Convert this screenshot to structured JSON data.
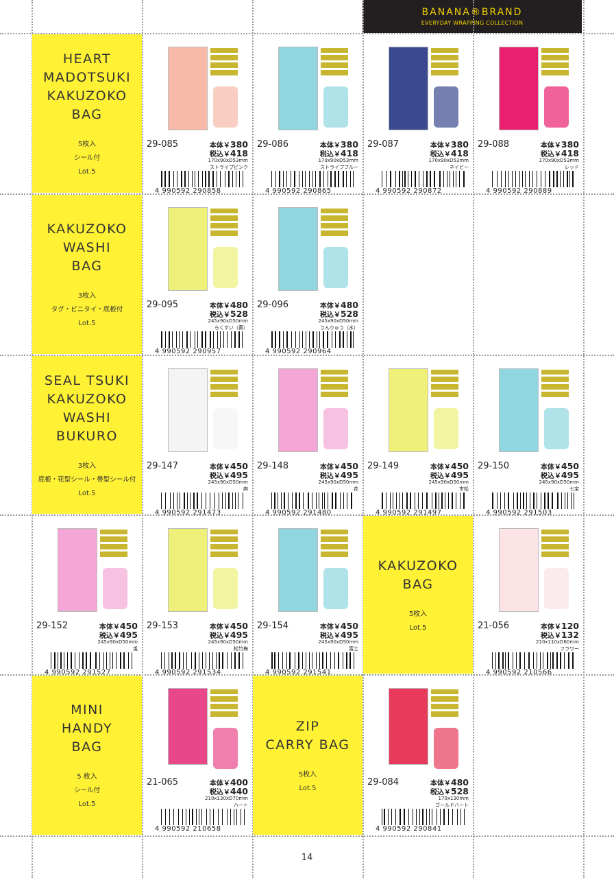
{
  "header": {
    "brand": "BANANA®BRAND",
    "subtitle": "EVERYDAY WRAPPING COLLECTION"
  },
  "labels": {
    "price": "本体￥",
    "tax_price": "税込￥"
  },
  "categories": [
    {
      "title": [
        "HEART",
        "MADOTSUKI",
        "KAKUZOKO",
        "BAG"
      ],
      "quantity": "5枚入",
      "note": "シール付",
      "lot": "Lot.5"
    },
    {
      "title": [
        "KAKUZOKO",
        "WASHI",
        "BAG"
      ],
      "quantity": "3枚入",
      "note": "タグ・ビニタイ・底板付",
      "lot": "Lot.5"
    },
    {
      "title": [
        "SEAL TSUKI",
        "KAKUZOKO",
        "WASHI",
        "BUKURO"
      ],
      "quantity": "3枚入",
      "note": "底板・花型シール・帯型シール付",
      "lot": "Lot.5"
    },
    {
      "title": [
        "KAKUZOKO",
        "BAG"
      ],
      "quantity": "5枚入",
      "lot": "Lot.5"
    },
    {
      "title": [
        "MINI",
        "HANDY",
        "BAG"
      ],
      "quantity": "5 枚入",
      "note": "シール付",
      "lot": "Lot.5"
    },
    {
      "title": [
        "ZIP",
        "CARRY BAG"
      ],
      "quantity": "5枚入",
      "lot": "Lot.5"
    }
  ],
  "products": [
    {
      "code": "29-085",
      "price": 380,
      "tax_price": 418,
      "size": "170x90xD53mm",
      "name": "ストライプピンク",
      "barcode": "4 990592 290858"
    },
    {
      "code": "29-086",
      "price": 380,
      "tax_price": 418,
      "size": "170x90xD53mm",
      "name": "ストライプブルー",
      "barcode": "4 990592 290865"
    },
    {
      "code": "29-087",
      "price": 380,
      "tax_price": 418,
      "size": "170x90xD53mm",
      "name": "ネイビー",
      "barcode": "4 990592 290872"
    },
    {
      "code": "29-088",
      "price": 380,
      "tax_price": 418,
      "size": "170x90xD53mm",
      "name": "レッド",
      "barcode": "4 990592 290889"
    },
    {
      "code": "29-095",
      "price": 480,
      "tax_price": 528,
      "size": "245x90xD50mm",
      "name": "らくすい（黄）",
      "barcode": "4 990592 290957"
    },
    {
      "code": "29-096",
      "price": 480,
      "tax_price": 528,
      "size": "245x90xD50mm",
      "name": "うんりゅう（水）",
      "barcode": "4 990592 290964"
    },
    {
      "code": "29-147",
      "price": 450,
      "tax_price": 495,
      "size": "245x90xD50mm",
      "name": "麻",
      "barcode": "4 990592 291473"
    },
    {
      "code": "29-148",
      "price": 450,
      "tax_price": 495,
      "size": "245x90xD50mm",
      "name": "花",
      "barcode": "4 990592 291480"
    },
    {
      "code": "29-149",
      "price": 450,
      "tax_price": 495,
      "size": "245x90xD50mm",
      "name": "市松",
      "barcode": "4 990592 291497"
    },
    {
      "code": "29-150",
      "price": 450,
      "tax_price": 495,
      "size": "245x90xD50mm",
      "name": "七宝",
      "barcode": "4 990592 291503"
    },
    {
      "code": "29-152",
      "price": 450,
      "tax_price": 495,
      "size": "245x90xD50mm",
      "name": "兎",
      "barcode": "4 990592 291527"
    },
    {
      "code": "29-153",
      "price": 450,
      "tax_price": 495,
      "size": "245x90xD50mm",
      "name": "松竹梅",
      "barcode": "4 990592 291534"
    },
    {
      "code": "29-154",
      "price": 450,
      "tax_price": 495,
      "size": "245x90xD50mm",
      "name": "富士",
      "barcode": "4 990592 291541"
    },
    {
      "code": "21-056",
      "price": 120,
      "tax_price": 132,
      "size": "210x110xD60mm",
      "name": "フラワー",
      "barcode": "4 990592 210566"
    },
    {
      "code": "21-065",
      "price": 400,
      "tax_price": 440,
      "size": "210x130xD70mm",
      "name": "ハート",
      "barcode": "4 990592 210658"
    },
    {
      "code": "29-084",
      "price": 480,
      "tax_price": 528,
      "size": "170x130mm",
      "name": "ゴールドハート",
      "barcode": "4 990592 290841"
    }
  ],
  "page_number": "14"
}
